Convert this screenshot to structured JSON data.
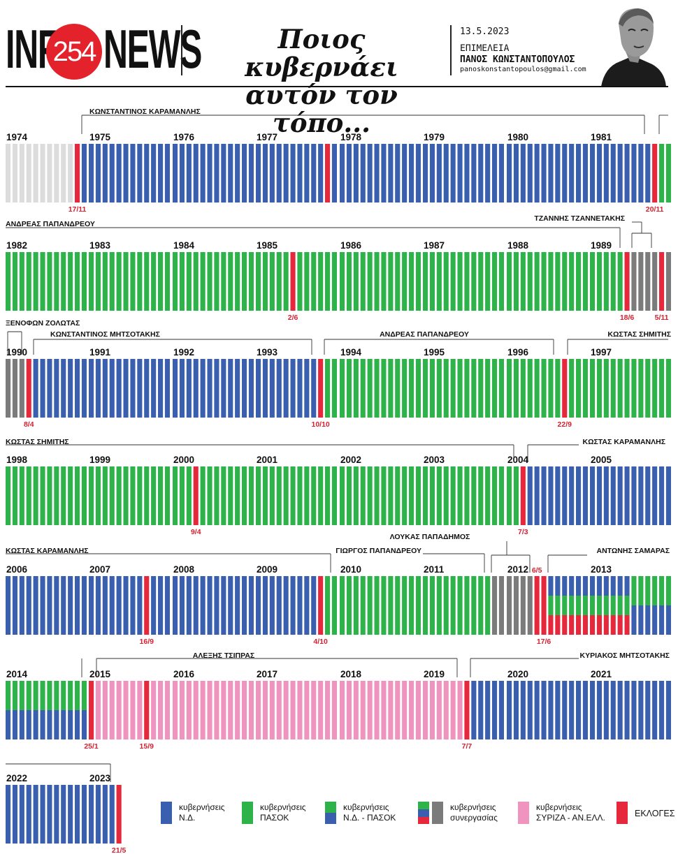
{
  "header": {
    "logo_left": "INF",
    "logo_number": "254",
    "logo_right": "NEWS",
    "headline_line1": "Ποιος κυβερνάει",
    "headline_line2": "αυτόν τον τόπο...",
    "date": "13.5.2023",
    "editor_label": "ΕΠΙΜΕΛΕΙΑ",
    "editor_name": "ΠΑΝΟΣ ΚΩΝΣΤΑΝΤΟΠΟΥΛΟΣ",
    "email": "panoskonstantopoulos@gmail.com"
  },
  "colors": {
    "nd": "#3a5fae",
    "pasok": "#2db34a",
    "coalition": "#7b7b7b",
    "syriza": "#ef93bf",
    "election": "#e5283b",
    "pre": "#dcdcdc",
    "date_text": "#d81f2f"
  },
  "chart_data": {
    "type": "bar",
    "unit": "month",
    "years": [
      {
        "year": "1974",
        "months": [
          "pre",
          "pre",
          "pre",
          "pre",
          "pre",
          "pre",
          "pre",
          "pre",
          "pre",
          "pre",
          "E",
          "nd"
        ],
        "notes": [
          {
            "month": 10,
            "date": "17/11"
          }
        ]
      },
      {
        "year": "1975",
        "months": [
          "nd",
          "nd",
          "nd",
          "nd",
          "nd",
          "nd",
          "nd",
          "nd",
          "nd",
          "nd",
          "nd",
          "nd"
        ],
        "notes": []
      },
      {
        "year": "1976",
        "months": [
          "nd",
          "nd",
          "nd",
          "nd",
          "nd",
          "nd",
          "nd",
          "nd",
          "nd",
          "nd",
          "nd",
          "nd"
        ],
        "notes": []
      },
      {
        "year": "1977",
        "months": [
          "nd",
          "nd",
          "nd",
          "nd",
          "nd",
          "nd",
          "nd",
          "nd",
          "nd",
          "nd",
          "E",
          "nd"
        ],
        "notes": []
      },
      {
        "year": "1978",
        "months": [
          "nd",
          "nd",
          "nd",
          "nd",
          "nd",
          "nd",
          "nd",
          "nd",
          "nd",
          "nd",
          "nd",
          "nd"
        ],
        "notes": []
      },
      {
        "year": "1979",
        "months": [
          "nd",
          "nd",
          "nd",
          "nd",
          "nd",
          "nd",
          "nd",
          "nd",
          "nd",
          "nd",
          "nd",
          "nd"
        ],
        "notes": []
      },
      {
        "year": "1980",
        "months": [
          "nd",
          "nd",
          "nd",
          "nd",
          "nd",
          "nd",
          "nd",
          "nd",
          "nd",
          "nd",
          "nd",
          "nd"
        ],
        "notes": []
      },
      {
        "year": "1981",
        "months": [
          "nd",
          "nd",
          "nd",
          "nd",
          "nd",
          "nd",
          "nd",
          "nd",
          "nd",
          "E",
          "pasok",
          "pasok"
        ],
        "notes": [
          {
            "month": 9,
            "date": "20/11"
          }
        ]
      },
      {
        "year": "1982",
        "months": [
          "pasok",
          "pasok",
          "pasok",
          "pasok",
          "pasok",
          "pasok",
          "pasok",
          "pasok",
          "pasok",
          "pasok",
          "pasok",
          "pasok"
        ],
        "notes": []
      },
      {
        "year": "1983",
        "months": [
          "pasok",
          "pasok",
          "pasok",
          "pasok",
          "pasok",
          "pasok",
          "pasok",
          "pasok",
          "pasok",
          "pasok",
          "pasok",
          "pasok"
        ],
        "notes": []
      },
      {
        "year": "1984",
        "months": [
          "pasok",
          "pasok",
          "pasok",
          "pasok",
          "pasok",
          "pasok",
          "pasok",
          "pasok",
          "pasok",
          "pasok",
          "pasok",
          "pasok"
        ],
        "notes": []
      },
      {
        "year": "1985",
        "months": [
          "pasok",
          "pasok",
          "pasok",
          "pasok",
          "pasok",
          "E",
          "pasok",
          "pasok",
          "pasok",
          "pasok",
          "pasok",
          "pasok"
        ],
        "notes": [
          {
            "month": 5,
            "date": "2/6"
          }
        ]
      },
      {
        "year": "1986",
        "months": [
          "pasok",
          "pasok",
          "pasok",
          "pasok",
          "pasok",
          "pasok",
          "pasok",
          "pasok",
          "pasok",
          "pasok",
          "pasok",
          "pasok"
        ],
        "notes": []
      },
      {
        "year": "1987",
        "months": [
          "pasok",
          "pasok",
          "pasok",
          "pasok",
          "pasok",
          "pasok",
          "pasok",
          "pasok",
          "pasok",
          "pasok",
          "pasok",
          "pasok"
        ],
        "notes": []
      },
      {
        "year": "1988",
        "months": [
          "pasok",
          "pasok",
          "pasok",
          "pasok",
          "pasok",
          "pasok",
          "pasok",
          "pasok",
          "pasok",
          "pasok",
          "pasok",
          "pasok"
        ],
        "notes": []
      },
      {
        "year": "1989",
        "months": [
          "pasok",
          "pasok",
          "pasok",
          "pasok",
          "pasok",
          "E",
          "coal",
          "coal",
          "coal",
          "coal",
          "E",
          "coal"
        ],
        "notes": [
          {
            "month": 5,
            "date": "18/6"
          },
          {
            "month": 10,
            "date": "5/11"
          }
        ]
      },
      {
        "year": "1990",
        "months": [
          "coal",
          "coal",
          "coal",
          "E",
          "nd",
          "nd",
          "nd",
          "nd",
          "nd",
          "nd",
          "nd",
          "nd"
        ],
        "notes": [
          {
            "month": 3,
            "date": "8/4"
          }
        ]
      },
      {
        "year": "1991",
        "months": [
          "nd",
          "nd",
          "nd",
          "nd",
          "nd",
          "nd",
          "nd",
          "nd",
          "nd",
          "nd",
          "nd",
          "nd"
        ],
        "notes": []
      },
      {
        "year": "1992",
        "months": [
          "nd",
          "nd",
          "nd",
          "nd",
          "nd",
          "nd",
          "nd",
          "nd",
          "nd",
          "nd",
          "nd",
          "nd"
        ],
        "notes": []
      },
      {
        "year": "1993",
        "months": [
          "nd",
          "nd",
          "nd",
          "nd",
          "nd",
          "nd",
          "nd",
          "nd",
          "nd",
          "E",
          "pasok",
          "pasok"
        ],
        "notes": [
          {
            "month": 9,
            "date": "10/10"
          }
        ]
      },
      {
        "year": "1994",
        "months": [
          "pasok",
          "pasok",
          "pasok",
          "pasok",
          "pasok",
          "pasok",
          "pasok",
          "pasok",
          "pasok",
          "pasok",
          "pasok",
          "pasok"
        ],
        "notes": []
      },
      {
        "year": "1995",
        "months": [
          "pasok",
          "pasok",
          "pasok",
          "pasok",
          "pasok",
          "pasok",
          "pasok",
          "pasok",
          "pasok",
          "pasok",
          "pasok",
          "pasok"
        ],
        "notes": []
      },
      {
        "year": "1996",
        "months": [
          "pasok",
          "pasok",
          "pasok",
          "pasok",
          "pasok",
          "pasok",
          "pasok",
          "pasok",
          "E",
          "pasok",
          "pasok",
          "pasok"
        ],
        "notes": [
          {
            "month": 8,
            "date": "22/9"
          }
        ]
      },
      {
        "year": "1997",
        "months": [
          "pasok",
          "pasok",
          "pasok",
          "pasok",
          "pasok",
          "pasok",
          "pasok",
          "pasok",
          "pasok",
          "pasok",
          "pasok",
          "pasok"
        ],
        "notes": []
      },
      {
        "year": "1998",
        "months": [
          "pasok",
          "pasok",
          "pasok",
          "pasok",
          "pasok",
          "pasok",
          "pasok",
          "pasok",
          "pasok",
          "pasok",
          "pasok",
          "pasok"
        ],
        "notes": []
      },
      {
        "year": "1999",
        "months": [
          "pasok",
          "pasok",
          "pasok",
          "pasok",
          "pasok",
          "pasok",
          "pasok",
          "pasok",
          "pasok",
          "pasok",
          "pasok",
          "pasok"
        ],
        "notes": []
      },
      {
        "year": "2000",
        "months": [
          "pasok",
          "pasok",
          "pasok",
          "E",
          "pasok",
          "pasok",
          "pasok",
          "pasok",
          "pasok",
          "pasok",
          "pasok",
          "pasok"
        ],
        "notes": [
          {
            "month": 3,
            "date": "9/4"
          }
        ]
      },
      {
        "year": "2001",
        "months": [
          "pasok",
          "pasok",
          "pasok",
          "pasok",
          "pasok",
          "pasok",
          "pasok",
          "pasok",
          "pasok",
          "pasok",
          "pasok",
          "pasok"
        ],
        "notes": []
      },
      {
        "year": "2002",
        "months": [
          "pasok",
          "pasok",
          "pasok",
          "pasok",
          "pasok",
          "pasok",
          "pasok",
          "pasok",
          "pasok",
          "pasok",
          "pasok",
          "pasok"
        ],
        "notes": []
      },
      {
        "year": "2003",
        "months": [
          "pasok",
          "pasok",
          "pasok",
          "pasok",
          "pasok",
          "pasok",
          "pasok",
          "pasok",
          "pasok",
          "pasok",
          "pasok",
          "pasok"
        ],
        "notes": []
      },
      {
        "year": "2004",
        "months": [
          "pasok",
          "pasok",
          "E",
          "nd",
          "nd",
          "nd",
          "nd",
          "nd",
          "nd",
          "nd",
          "nd",
          "nd"
        ],
        "notes": [
          {
            "month": 2,
            "date": "7/3"
          }
        ]
      },
      {
        "year": "2005",
        "months": [
          "nd",
          "nd",
          "nd",
          "nd",
          "nd",
          "nd",
          "nd",
          "nd",
          "nd",
          "nd",
          "nd",
          "nd"
        ],
        "notes": []
      },
      {
        "year": "2006",
        "months": [
          "nd",
          "nd",
          "nd",
          "nd",
          "nd",
          "nd",
          "nd",
          "nd",
          "nd",
          "nd",
          "nd",
          "nd"
        ],
        "notes": []
      },
      {
        "year": "2007",
        "months": [
          "nd",
          "nd",
          "nd",
          "nd",
          "nd",
          "nd",
          "nd",
          "nd",
          "E",
          "nd",
          "nd",
          "nd"
        ],
        "notes": [
          {
            "month": 8,
            "date": "16/9"
          }
        ]
      },
      {
        "year": "2008",
        "months": [
          "nd",
          "nd",
          "nd",
          "nd",
          "nd",
          "nd",
          "nd",
          "nd",
          "nd",
          "nd",
          "nd",
          "nd"
        ],
        "notes": []
      },
      {
        "year": "2009",
        "months": [
          "nd",
          "nd",
          "nd",
          "nd",
          "nd",
          "nd",
          "nd",
          "nd",
          "nd",
          "E",
          "pasok",
          "pasok"
        ],
        "notes": [
          {
            "month": 9,
            "date": "4/10"
          }
        ]
      },
      {
        "year": "2010",
        "months": [
          "pasok",
          "pasok",
          "pasok",
          "pasok",
          "pasok",
          "pasok",
          "pasok",
          "pasok",
          "pasok",
          "pasok",
          "pasok",
          "pasok"
        ],
        "notes": []
      },
      {
        "year": "2011",
        "months": [
          "pasok",
          "pasok",
          "pasok",
          "pasok",
          "pasok",
          "pasok",
          "pasok",
          "pasok",
          "pasok",
          "pasok",
          "coal",
          "coal"
        ],
        "notes": []
      },
      {
        "year": "2012",
        "months": [
          "coal",
          "coal",
          "coal",
          "coal",
          "E",
          "E",
          "tri",
          "tri",
          "tri",
          "tri",
          "tri",
          "tri"
        ],
        "notes": [
          {
            "month": 4,
            "date": "6/5",
            "above": true
          },
          {
            "month": 5,
            "date": "17/6"
          }
        ]
      },
      {
        "year": "2013",
        "months": [
          "tri",
          "tri",
          "tri",
          "tri",
          "tri",
          "tri",
          "ndp",
          "ndp",
          "ndp",
          "ndp",
          "ndp",
          "ndp"
        ],
        "notes": []
      },
      {
        "year": "2014",
        "months": [
          "ndp",
          "ndp",
          "ndp",
          "ndp",
          "ndp",
          "ndp",
          "ndp",
          "ndp",
          "ndp",
          "ndp",
          "ndp",
          "ndp"
        ],
        "notes": []
      },
      {
        "year": "2015",
        "months": [
          "E",
          "syriza",
          "syriza",
          "syriza",
          "syriza",
          "syriza",
          "syriza",
          "syriza",
          "E",
          "syriza",
          "syriza",
          "syriza"
        ],
        "notes": [
          {
            "month": 0,
            "date": "25/1"
          },
          {
            "month": 8,
            "date": "15/9"
          }
        ]
      },
      {
        "year": "2016",
        "months": [
          "syriza",
          "syriza",
          "syriza",
          "syriza",
          "syriza",
          "syriza",
          "syriza",
          "syriza",
          "syriza",
          "syriza",
          "syriza",
          "syriza"
        ],
        "notes": []
      },
      {
        "year": "2017",
        "months": [
          "syriza",
          "syriza",
          "syriza",
          "syriza",
          "syriza",
          "syriza",
          "syriza",
          "syriza",
          "syriza",
          "syriza",
          "syriza",
          "syriza"
        ],
        "notes": []
      },
      {
        "year": "2018",
        "months": [
          "syriza",
          "syriza",
          "syriza",
          "syriza",
          "syriza",
          "syriza",
          "syriza",
          "syriza",
          "syriza",
          "syriza",
          "syriza",
          "syriza"
        ],
        "notes": []
      },
      {
        "year": "2019",
        "months": [
          "syriza",
          "syriza",
          "syriza",
          "syriza",
          "syriza",
          "syriza",
          "E",
          "nd",
          "nd",
          "nd",
          "nd",
          "nd"
        ],
        "notes": [
          {
            "month": 6,
            "date": "7/7"
          }
        ]
      },
      {
        "year": "2020",
        "months": [
          "nd",
          "nd",
          "nd",
          "nd",
          "nd",
          "nd",
          "nd",
          "nd",
          "nd",
          "nd",
          "nd",
          "nd"
        ],
        "notes": []
      },
      {
        "year": "2021",
        "months": [
          "nd",
          "nd",
          "nd",
          "nd",
          "nd",
          "nd",
          "nd",
          "nd",
          "nd",
          "nd",
          "nd",
          "nd"
        ],
        "notes": []
      },
      {
        "year": "2022",
        "months": [
          "nd",
          "nd",
          "nd",
          "nd",
          "nd",
          "nd",
          "nd",
          "nd",
          "nd",
          "nd",
          "nd",
          "nd"
        ],
        "notes": []
      },
      {
        "year": "2023",
        "months": [
          "nd",
          "nd",
          "nd",
          "nd",
          "E"
        ],
        "notes": [
          {
            "month": 4,
            "date": "21/5"
          }
        ]
      }
    ],
    "leaders": [
      {
        "name": "ΚΩΝΣΤΑΝΤΙΝΟΣ ΚΑΡΑΜΑΝΛΗΣ",
        "from": [
          "1974",
          11
        ],
        "to": [
          "1981",
          9
        ]
      },
      {
        "name": "ΑΝΔΡΕΑΣ ΠΑΠΑΝΔΡΕΟΥ",
        "from": [
          "1981",
          10
        ],
        "to": [
          "1989",
          5
        ]
      },
      {
        "name": "ΤΖΑΝΝΗΣ ΤΖΑΝΝΕΤΑΚΗΣ",
        "from": [
          "1989",
          6
        ],
        "to": [
          "1989",
          9
        ]
      },
      {
        "name": "ΞΕΝΟΦΩΝ ΖΟΛΩΤΑΣ",
        "from": [
          "1989",
          11
        ],
        "to": [
          "1990",
          2
        ]
      },
      {
        "name": "ΚΩΝΣΤΑΝΤΙΝΟΣ ΜΗΤΣΟΤΑΚΗΣ",
        "from": [
          "1990",
          4
        ],
        "to": [
          "1993",
          9
        ]
      },
      {
        "name": "ΑΝΔΡΕΑΣ ΠΑΠΑΝΔΡΕΟΥ",
        "from": [
          "1993",
          10
        ],
        "to": [
          "1996",
          7
        ]
      },
      {
        "name": "ΚΩΣΤΑΣ ΣΗΜΙΤΗΣ",
        "from": [
          "1996",
          9
        ],
        "to": [
          "2004",
          1
        ]
      },
      {
        "name": "ΚΩΣΤΑΣ ΚΑΡΑΜΑΝΛΗΣ",
        "from": [
          "2004",
          3
        ],
        "to": [
          "2009",
          9
        ]
      },
      {
        "name": "ΓΙΩΡΓΟΣ ΠΑΠΑΝΔΡΕΟΥ",
        "from": [
          "2009",
          10
        ],
        "to": [
          "2011",
          9
        ]
      },
      {
        "name": "ΛΟΥΚΑΣ ΠΑΠΑΔΗΜΟΣ",
        "from": [
          "2011",
          10
        ],
        "to": [
          "2012",
          3
        ]
      },
      {
        "name": "ΑΝΤΩΝΗΣ ΣΑΜΑΡΑΣ",
        "from": [
          "2012",
          6
        ],
        "to": [
          "2014",
          11
        ]
      },
      {
        "name": "ΑΛΕΞΗΣ ΤΣΙΠΡΑΣ",
        "from": [
          "2015",
          1
        ],
        "to": [
          "2019",
          5
        ]
      },
      {
        "name": "ΚΥΡΙΑΚΟΣ ΜΗΤΣΟΤΑΚΗΣ",
        "from": [
          "2019",
          7
        ],
        "to": [
          "2023",
          3
        ]
      }
    ],
    "legend": [
      {
        "key": "nd",
        "line1": "κυβερνήσεις",
        "line2": "Ν.Δ."
      },
      {
        "key": "pasok",
        "line1": "κυβερνήσεις",
        "line2": "ΠΑΣΟΚ"
      },
      {
        "key": "ndp",
        "line1": "κυβερνήσεις",
        "line2": "Ν.Δ. - ΠΑΣΟΚ"
      },
      {
        "key": "coal",
        "line1": "κυβερνήσεις",
        "line2": "συνεργασίας"
      },
      {
        "key": "syriza",
        "line1": "κυβερνήσεις",
        "line2": "ΣΥΡΙΖΑ - ΑΝ.ΕΛΛ."
      },
      {
        "key": "E",
        "line1": "ΕΚΛΟΓΕΣ",
        "line2": ""
      }
    ]
  }
}
